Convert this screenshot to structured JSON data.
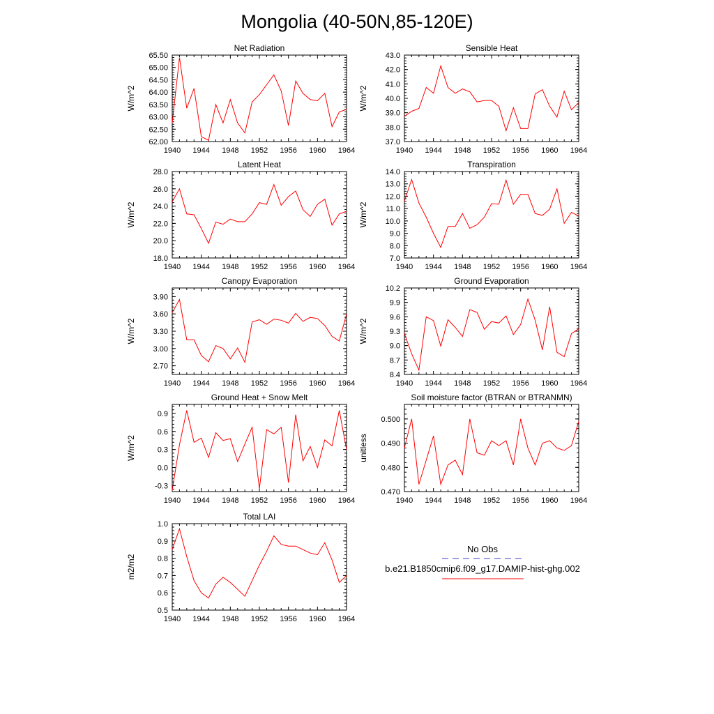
{
  "figure_title": "Mongolia (40-50N,85-120E)",
  "legend": {
    "entries": [
      {
        "label": "No Obs",
        "color": "#3b3bc4",
        "dash": true
      },
      {
        "label": "b.e21.B1850cmip6.f09_g17.DAMIP-hist-ghg.002",
        "color": "#ff0000",
        "dash": false
      }
    ]
  },
  "chart_data": [
    {
      "type": "line",
      "title": "Net Radiation",
      "ylabel": "W/m^2",
      "xlim": [
        1940,
        1964
      ],
      "ylim": [
        62.0,
        65.5
      ],
      "xticks": [
        1940,
        1944,
        1948,
        1952,
        1956,
        1960,
        1964
      ],
      "yticks": [
        "62.00",
        "62.50",
        "63.00",
        "63.50",
        "64.00",
        "64.50",
        "65.00",
        "65.50"
      ],
      "series": [
        {
          "color": "#ff0000",
          "x": [
            1940,
            1941,
            1942,
            1943,
            1944,
            1945,
            1946,
            1947,
            1948,
            1949,
            1950,
            1951,
            1952,
            1953,
            1954,
            1955,
            1956,
            1957,
            1958,
            1959,
            1960,
            1961,
            1962,
            1963,
            1964
          ],
          "values": [
            62.75,
            65.4,
            63.35,
            64.15,
            62.2,
            62.05,
            63.5,
            62.75,
            63.7,
            62.75,
            62.35,
            63.6,
            63.9,
            64.3,
            64.7,
            64.05,
            62.65,
            64.45,
            63.95,
            63.7,
            63.65,
            63.95,
            62.6,
            63.2,
            63.3
          ]
        }
      ]
    },
    {
      "type": "line",
      "title": "Sensible Heat",
      "ylabel": "W/m^2",
      "xlim": [
        1940,
        1964
      ],
      "ylim": [
        37.0,
        43.0
      ],
      "xticks": [
        1940,
        1944,
        1948,
        1952,
        1956,
        1960,
        1964
      ],
      "yticks": [
        "37.0",
        "38.0",
        "39.0",
        "40.0",
        "41.0",
        "42.0",
        "43.0"
      ],
      "series": [
        {
          "color": "#ff0000",
          "x": [
            1940,
            1941,
            1942,
            1943,
            1944,
            1945,
            1946,
            1947,
            1948,
            1949,
            1950,
            1951,
            1952,
            1953,
            1954,
            1955,
            1956,
            1957,
            1958,
            1959,
            1960,
            1961,
            1962,
            1963,
            1964
          ],
          "values": [
            38.75,
            39.1,
            39.3,
            40.75,
            40.35,
            42.25,
            40.75,
            40.35,
            40.65,
            40.45,
            39.75,
            39.85,
            39.85,
            39.45,
            37.75,
            39.35,
            37.9,
            37.9,
            40.3,
            40.6,
            39.45,
            38.7,
            40.5,
            39.2,
            39.7
          ]
        }
      ]
    },
    {
      "type": "line",
      "title": "Latent Heat",
      "ylabel": "W/m^2",
      "xlim": [
        1940,
        1964
      ],
      "ylim": [
        18.0,
        28.0
      ],
      "xticks": [
        1940,
        1944,
        1948,
        1952,
        1956,
        1960,
        1964
      ],
      "yticks": [
        "18.0",
        "20.0",
        "22.0",
        "24.0",
        "26.0",
        "28.0"
      ],
      "series": [
        {
          "color": "#ff0000",
          "x": [
            1940,
            1941,
            1942,
            1943,
            1944,
            1945,
            1946,
            1947,
            1948,
            1949,
            1950,
            1951,
            1952,
            1953,
            1954,
            1955,
            1956,
            1957,
            1958,
            1959,
            1960,
            1961,
            1962,
            1963,
            1964
          ],
          "values": [
            24.5,
            26.0,
            23.1,
            23.0,
            21.4,
            19.7,
            22.15,
            21.9,
            22.5,
            22.2,
            22.2,
            23.1,
            24.4,
            24.2,
            26.5,
            24.1,
            25.1,
            25.75,
            23.6,
            22.8,
            24.2,
            24.8,
            21.8,
            23.1,
            23.4
          ]
        }
      ]
    },
    {
      "type": "line",
      "title": "Transpiration",
      "ylabel": "W/m^2",
      "xlim": [
        1940,
        1964
      ],
      "ylim": [
        7.0,
        14.0
      ],
      "xticks": [
        1940,
        1944,
        1948,
        1952,
        1956,
        1960,
        1964
      ],
      "yticks": [
        "7.0",
        "8.0",
        "9.0",
        "10.0",
        "11.0",
        "12.0",
        "13.0",
        "14.0"
      ],
      "series": [
        {
          "color": "#ff0000",
          "x": [
            1940,
            1941,
            1942,
            1943,
            1944,
            1945,
            1946,
            1947,
            1948,
            1949,
            1950,
            1951,
            1952,
            1953,
            1954,
            1955,
            1956,
            1957,
            1958,
            1959,
            1960,
            1961,
            1962,
            1963,
            1964
          ],
          "values": [
            11.6,
            13.35,
            11.45,
            10.3,
            9.0,
            7.85,
            9.55,
            9.55,
            10.6,
            9.4,
            9.7,
            10.3,
            11.4,
            11.35,
            13.3,
            11.35,
            12.15,
            12.15,
            10.6,
            10.45,
            10.95,
            12.6,
            9.8,
            10.7,
            10.4
          ]
        }
      ]
    },
    {
      "type": "line",
      "title": "Canopy Evaporation",
      "ylabel": "W/m^2",
      "xlim": [
        1940,
        1964
      ],
      "ylim": [
        2.55,
        4.05
      ],
      "xticks": [
        1940,
        1944,
        1948,
        1952,
        1956,
        1960,
        1964
      ],
      "yticks": [
        "2.70",
        "3.00",
        "3.30",
        "3.60",
        "3.90"
      ],
      "series": [
        {
          "color": "#ff0000",
          "x": [
            1940,
            1941,
            1942,
            1943,
            1944,
            1945,
            1946,
            1947,
            1948,
            1949,
            1950,
            1951,
            1952,
            1953,
            1954,
            1955,
            1956,
            1957,
            1958,
            1959,
            1960,
            1961,
            1962,
            1963,
            1964
          ],
          "values": [
            3.62,
            3.85,
            3.15,
            3.15,
            2.88,
            2.77,
            3.05,
            3.0,
            2.82,
            3.01,
            2.76,
            3.46,
            3.5,
            3.42,
            3.51,
            3.49,
            3.44,
            3.61,
            3.47,
            3.54,
            3.52,
            3.4,
            3.21,
            3.13,
            3.6
          ]
        }
      ]
    },
    {
      "type": "line",
      "title": "Ground Evaporation",
      "ylabel": "W/m^2",
      "xlim": [
        1940,
        1964
      ],
      "ylim": [
        8.4,
        10.2
      ],
      "xticks": [
        1940,
        1944,
        1948,
        1952,
        1956,
        1960,
        1964
      ],
      "yticks": [
        "8.4",
        "8.7",
        "9.0",
        "9.3",
        "9.6",
        "9.9",
        "10.2"
      ],
      "series": [
        {
          "color": "#ff0000",
          "x": [
            1940,
            1941,
            1942,
            1943,
            1944,
            1945,
            1946,
            1947,
            1948,
            1949,
            1950,
            1951,
            1952,
            1953,
            1954,
            1955,
            1956,
            1957,
            1958,
            1959,
            1960,
            1961,
            1962,
            1963,
            1964
          ],
          "values": [
            9.25,
            8.83,
            8.49,
            9.6,
            9.52,
            8.99,
            9.54,
            9.38,
            9.19,
            9.75,
            9.69,
            9.34,
            9.5,
            9.47,
            9.62,
            9.23,
            9.44,
            9.97,
            9.53,
            8.91,
            9.81,
            8.86,
            8.77,
            9.25,
            9.35
          ]
        }
      ]
    },
    {
      "type": "line",
      "title": "Ground Heat + Snow Melt",
      "ylabel": "W/m^2",
      "xlim": [
        1940,
        1964
      ],
      "ylim": [
        -0.4,
        1.05
      ],
      "xticks": [
        1940,
        1944,
        1948,
        1952,
        1956,
        1960,
        1964
      ],
      "yticks": [
        "-0.3",
        "0.0",
        "0.3",
        "0.6",
        "0.9"
      ],
      "series": [
        {
          "color": "#ff0000",
          "x": [
            1940,
            1941,
            1942,
            1943,
            1944,
            1945,
            1946,
            1947,
            1948,
            1949,
            1950,
            1951,
            1952,
            1953,
            1954,
            1955,
            1956,
            1957,
            1958,
            1959,
            1960,
            1961,
            1962,
            1963,
            1964
          ],
          "values": [
            -0.38,
            0.38,
            0.95,
            0.42,
            0.49,
            0.17,
            0.58,
            0.45,
            0.48,
            0.1,
            0.39,
            0.67,
            -0.35,
            0.63,
            0.56,
            0.67,
            -0.25,
            0.88,
            0.11,
            0.35,
            0.0,
            0.46,
            0.36,
            0.95,
            0.3
          ]
        }
      ]
    },
    {
      "type": "line",
      "title": "Soil moisture factor (BTRAN or BTRANMN)",
      "ylabel": "unitless",
      "xlim": [
        1940,
        1964
      ],
      "ylim": [
        0.47,
        0.506
      ],
      "xticks": [
        1940,
        1944,
        1948,
        1952,
        1956,
        1960,
        1964
      ],
      "yticks": [
        "0.470",
        "0.480",
        "0.490",
        "0.500"
      ],
      "series": [
        {
          "color": "#ff0000",
          "x": [
            1940,
            1941,
            1942,
            1943,
            1944,
            1945,
            1946,
            1947,
            1948,
            1949,
            1950,
            1951,
            1952,
            1953,
            1954,
            1955,
            1956,
            1957,
            1958,
            1959,
            1960,
            1961,
            1962,
            1963,
            1964
          ],
          "values": [
            0.488,
            0.5,
            0.473,
            0.483,
            0.493,
            0.473,
            0.481,
            0.483,
            0.477,
            0.5,
            0.486,
            0.485,
            0.491,
            0.489,
            0.491,
            0.481,
            0.5,
            0.488,
            0.481,
            0.49,
            0.491,
            0.488,
            0.487,
            0.489,
            0.499
          ]
        }
      ]
    },
    {
      "type": "line",
      "title": "Total LAI",
      "ylabel": "m2/m2",
      "xlim": [
        1940,
        1964
      ],
      "ylim": [
        0.5,
        1.0
      ],
      "xticks": [
        1940,
        1944,
        1948,
        1952,
        1956,
        1960,
        1964
      ],
      "yticks": [
        "0.5",
        "0.6",
        "0.7",
        "0.8",
        "0.9",
        "1.0"
      ],
      "series": [
        {
          "color": "#ff0000",
          "x": [
            1940,
            1941,
            1942,
            1943,
            1944,
            1945,
            1946,
            1947,
            1948,
            1949,
            1950,
            1951,
            1952,
            1953,
            1954,
            1955,
            1956,
            1957,
            1958,
            1959,
            1960,
            1961,
            1962,
            1963,
            1964
          ],
          "values": [
            0.85,
            0.97,
            0.81,
            0.67,
            0.6,
            0.57,
            0.65,
            0.69,
            0.66,
            0.62,
            0.58,
            0.67,
            0.76,
            0.84,
            0.93,
            0.88,
            0.87,
            0.87,
            0.85,
            0.83,
            0.82,
            0.89,
            0.79,
            0.66,
            0.7
          ]
        }
      ]
    }
  ]
}
